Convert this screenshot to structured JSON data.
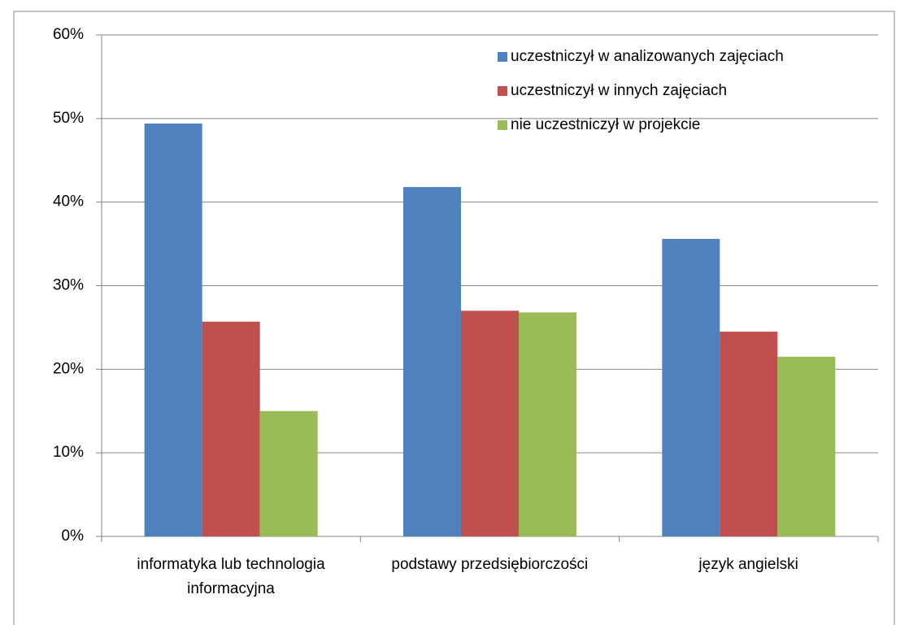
{
  "chart_data": {
    "type": "bar",
    "categories": [
      "informatyka lub technologia\ninformacyjna",
      "podstawy przedsiębiorczości",
      "język angielski"
    ],
    "series": [
      {
        "name": "uczestniczył w analizowanych zajęciach",
        "color": "#4f81bd",
        "values": [
          49.4,
          41.8,
          35.6
        ]
      },
      {
        "name": "uczestniczył w innych zajęciach",
        "color": "#c0504d",
        "values": [
          25.7,
          27.0,
          24.5
        ]
      },
      {
        "name": "nie uczestniczył w projekcie",
        "color": "#9bbb59",
        "values": [
          15.0,
          26.8,
          21.5
        ]
      }
    ],
    "ylim": [
      0,
      60
    ],
    "yticks": [
      {
        "value": 0,
        "label": "0%"
      },
      {
        "value": 10,
        "label": "10%"
      },
      {
        "value": 20,
        "label": "20%"
      },
      {
        "value": 30,
        "label": "30%"
      },
      {
        "value": 40,
        "label": "40%"
      },
      {
        "value": 50,
        "label": "50%"
      },
      {
        "value": 60,
        "label": "60%"
      }
    ],
    "grid": true,
    "legend": "top-right"
  }
}
